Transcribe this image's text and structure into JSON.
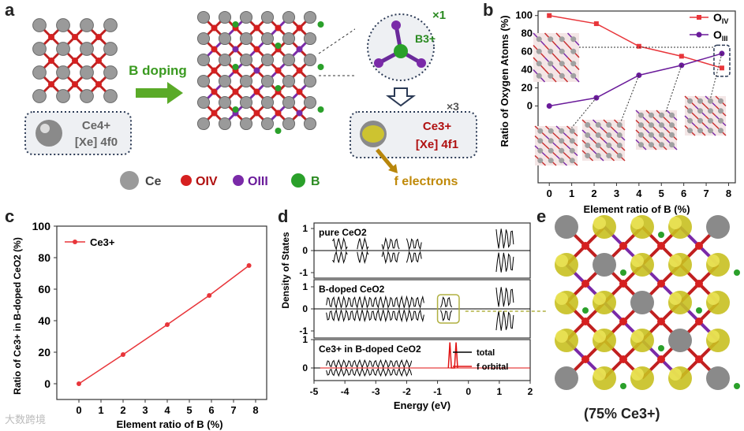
{
  "panels": {
    "a": {
      "letter": "a",
      "ce4": {
        "label": "Ce4+",
        "config": "[Xe] 4f0"
      },
      "arrow_label": "B doping",
      "b3": {
        "label": "B3+",
        "count": "×1"
      },
      "ce3": {
        "label": "Ce3+",
        "config": "[Xe] 4f1",
        "count": "×3"
      },
      "f_electrons": "f electrons",
      "legend": [
        "Ce",
        "OIV",
        "OIII",
        "B"
      ],
      "colors": {
        "ce": "#9a9a9a",
        "oiv": "#d62020",
        "oiii": "#7a2aa8",
        "b": "#2aa02a",
        "f": "#c8b400"
      }
    },
    "b": {
      "letter": "b"
    },
    "c": {
      "letter": "c"
    },
    "d": {
      "letter": "d"
    },
    "e": {
      "letter": "e",
      "caption": "(75% Ce3+)"
    }
  },
  "chart_data": [
    {
      "id": "b",
      "type": "line",
      "xlabel": "Element ratio of B (%)",
      "ylabel": "Ratio of Oxygen Atoms (%)",
      "xlim": [
        -0.5,
        8.3
      ],
      "ylim": [
        -85,
        105
      ],
      "xticks": [
        0,
        1,
        2,
        3,
        4,
        5,
        6,
        7,
        8
      ],
      "yticks": [
        0,
        20,
        40,
        60,
        80,
        100
      ],
      "legend_position": "top-right",
      "series": [
        {
          "name": "OIV",
          "color": "#e8353a",
          "x": [
            0,
            2.1,
            4.0,
            5.9,
            7.7
          ],
          "y": [
            100,
            91,
            66,
            55,
            42
          ]
        },
        {
          "name": "OIII",
          "color": "#6a1b9a",
          "x": [
            0,
            2.1,
            4.0,
            5.9,
            7.7
          ],
          "y": [
            0,
            9,
            34,
            45,
            58
          ]
        }
      ]
    },
    {
      "id": "c",
      "type": "line",
      "xlabel": "Element ratio of B (%)",
      "ylabel": "Ratio of Ce3+ in B-doped CeO2 (%)",
      "xlim": [
        -1,
        8.5
      ],
      "ylim": [
        -10,
        100
      ],
      "xticks": [
        0,
        1,
        2,
        3,
        4,
        5,
        6,
        7,
        8
      ],
      "yticks": [
        0,
        20,
        40,
        60,
        80,
        100
      ],
      "legend_position": "top-left",
      "series": [
        {
          "name": "Ce3+",
          "color": "#e8353a",
          "x": [
            0,
            2.0,
            4.0,
            5.9,
            7.7
          ],
          "y": [
            0,
            18.5,
            37.5,
            56,
            75
          ]
        }
      ]
    },
    {
      "id": "d",
      "type": "line",
      "xlabel": "Energy (eV)",
      "ylabel": "Density of States",
      "xlim": [
        -5,
        2
      ],
      "xticks": [
        -5,
        -4,
        -3,
        -2,
        -1,
        0,
        1,
        2
      ],
      "subplots": [
        {
          "label": "pure CeO2",
          "yticks": [
            -1,
            0,
            1
          ]
        },
        {
          "label": "B-doped CeO2",
          "yticks": [
            -1,
            0,
            1
          ]
        },
        {
          "label": "Ce3+ in B-doped CeO2",
          "yticks": [
            0,
            1
          ]
        }
      ],
      "legend": [
        {
          "name": "total",
          "color": "#000000"
        },
        {
          "name": "f orbital",
          "color": "#e01010"
        }
      ]
    }
  ],
  "watermark": "大数跨境"
}
